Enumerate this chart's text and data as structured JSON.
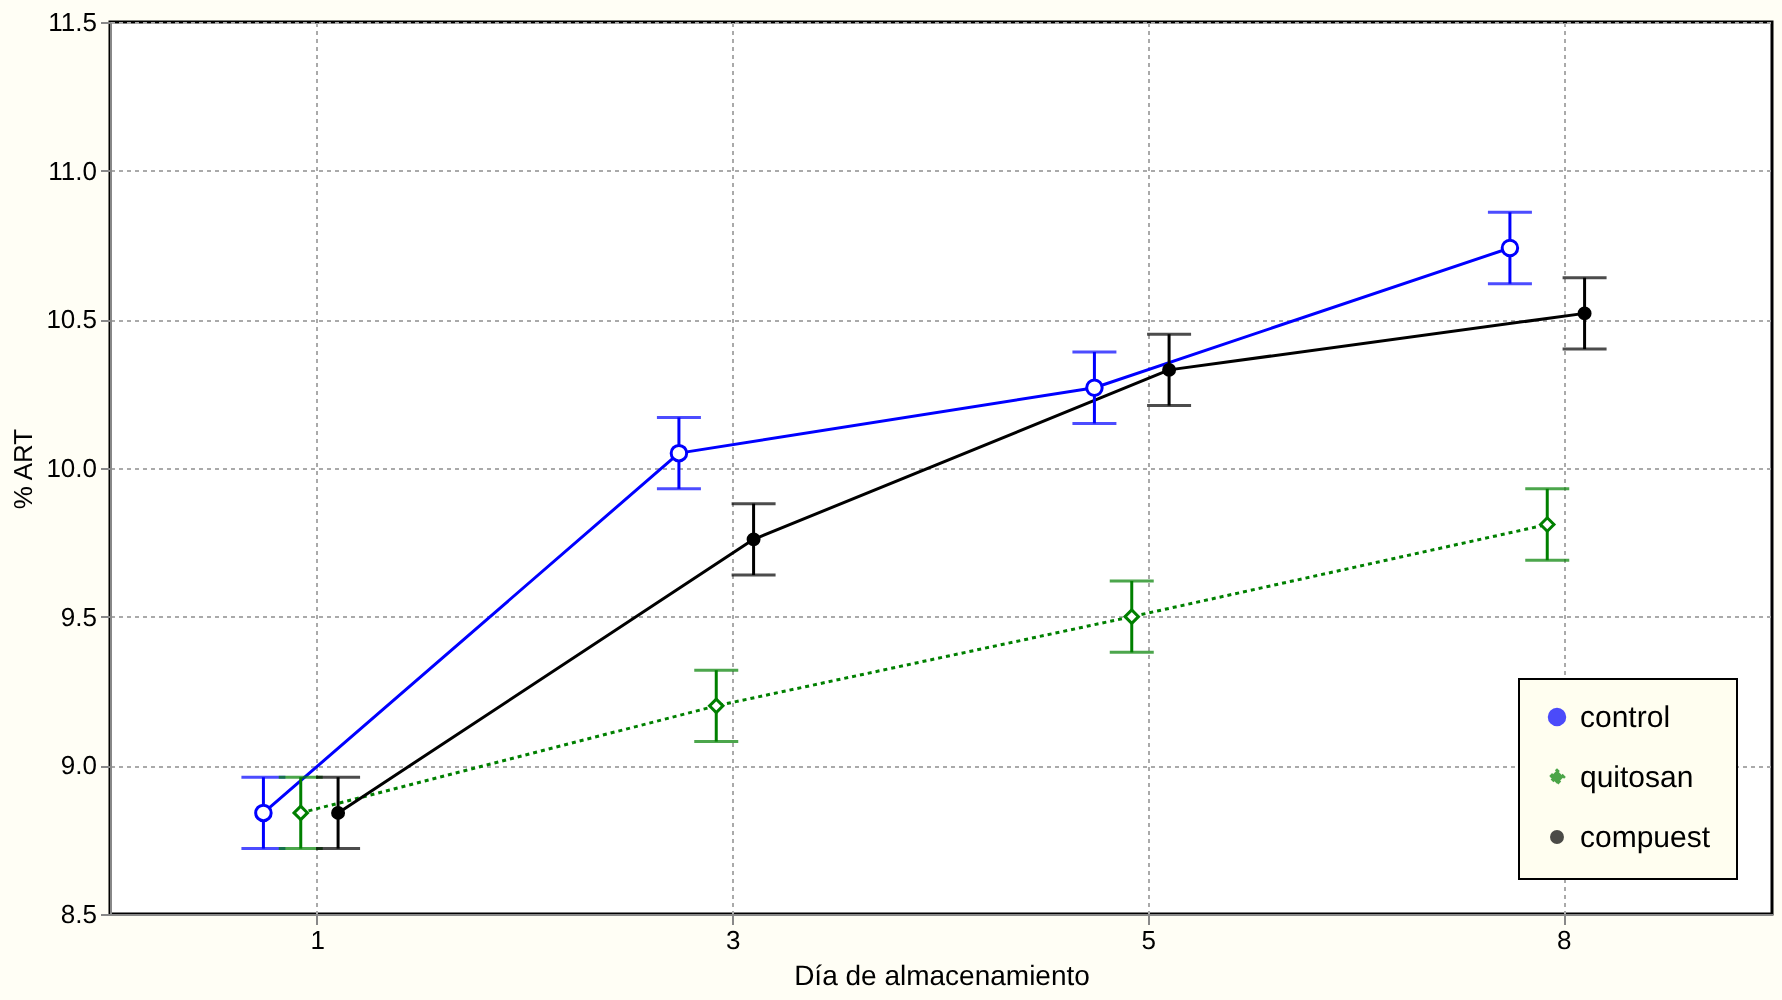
{
  "chart_data": {
    "type": "line",
    "xlabel": "Día de almacenamiento",
    "ylabel": "% ART",
    "categories": [
      "1",
      "3",
      "5",
      "8"
    ],
    "ylim": [
      8.5,
      11.5
    ],
    "yticks": [
      8.5,
      {
        "value": 9,
        "label": "9.0"
      },
      9.5,
      {
        "value": 10,
        "label": "10.0"
      },
      10.5,
      {
        "value": 11,
        "label": "11.0"
      },
      11.5
    ],
    "grid": true,
    "legend": "bottom right",
    "series": [
      {
        "name": "control",
        "color": "#0000ff",
        "marker": "circle",
        "line_style": "solid",
        "values": [
          8.84,
          10.05,
          10.27,
          10.74
        ],
        "errors": [
          0.12,
          0.12,
          0.12,
          0.12
        ]
      },
      {
        "name": "quitosan",
        "color": "#008000",
        "marker": "diamond",
        "line_style": "dotted",
        "values": [
          8.84,
          9.2,
          9.5,
          9.81
        ],
        "errors": [
          0.12,
          0.12,
          0.12,
          0.12
        ]
      },
      {
        "name": "compuest",
        "color": "#000000",
        "marker": "circle",
        "line_style": "solid",
        "values": [
          8.84,
          9.76,
          10.33,
          10.52
        ],
        "errors": [
          0.12,
          0.12,
          0.12,
          0.12
        ]
      }
    ]
  }
}
